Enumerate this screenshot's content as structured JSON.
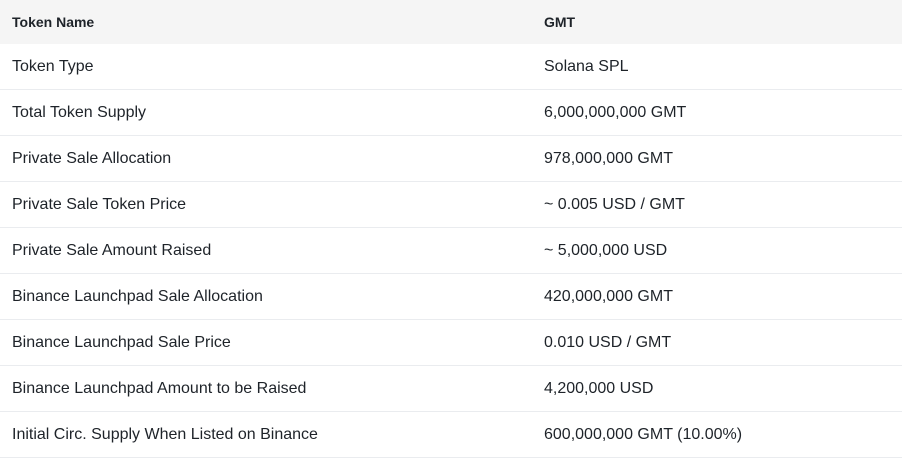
{
  "table": {
    "header": {
      "label": "Token Name",
      "value": "GMT"
    },
    "rows": [
      {
        "label": "Token Type",
        "value": "Solana SPL"
      },
      {
        "label": "Total Token Supply",
        "value": "6,000,000,000 GMT"
      },
      {
        "label": "Private Sale Allocation",
        "value": "978,000,000 GMT"
      },
      {
        "label": "Private Sale Token Price",
        "value": "~ 0.005 USD / GMT"
      },
      {
        "label": "Private Sale Amount Raised",
        "value": "~ 5,000,000 USD"
      },
      {
        "label": "Binance Launchpad Sale Allocation",
        "value": "420,000,000 GMT"
      },
      {
        "label": "Binance Launchpad Sale Price",
        "value": "0.010 USD / GMT"
      },
      {
        "label": "Binance Launchpad Amount to be Raised",
        "value": "4,200,000 USD"
      },
      {
        "label": "Initial Circ. Supply When Listed on Binance",
        "value": "600,000,000 GMT (10.00%)"
      }
    ]
  },
  "colors": {
    "header_background": "#f5f5f5",
    "row_divider": "#eaecef",
    "text": "#1e2329"
  }
}
